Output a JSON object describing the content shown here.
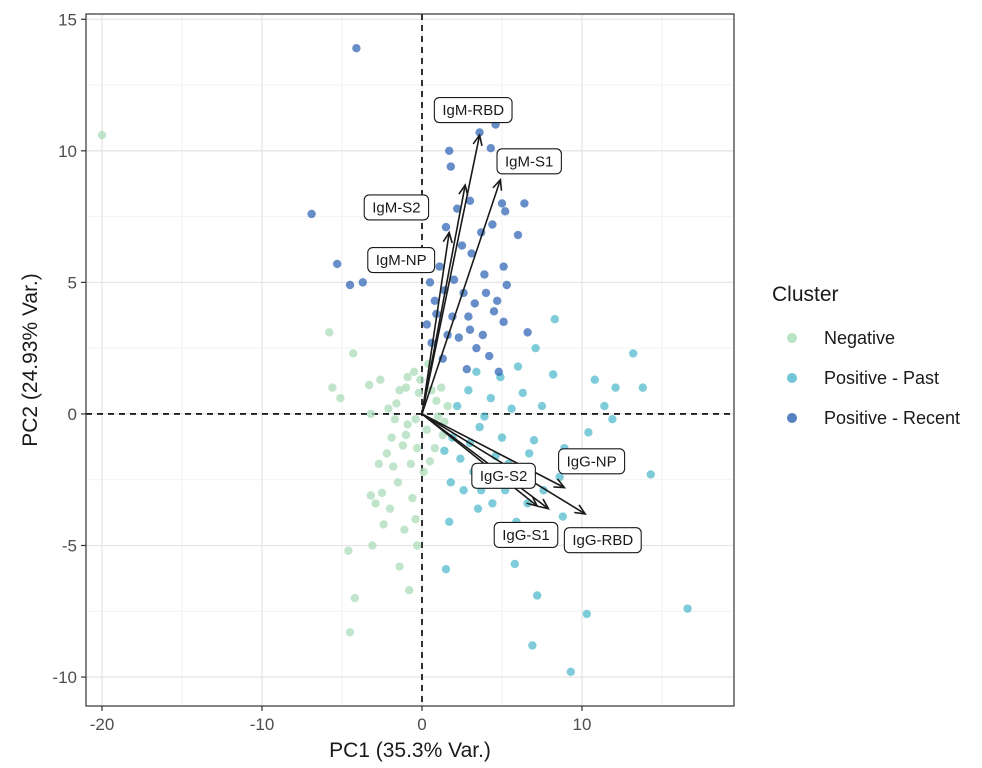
{
  "chart_data": {
    "type": "scatter",
    "title": "",
    "xlabel": "PC1 (35.3% Var.)",
    "ylabel": "PC2 (24.93% Var.)",
    "xlim": [
      -21,
      19.5
    ],
    "ylim": [
      -11.1,
      15.2
    ],
    "x_ticks": [
      -20,
      -10,
      0,
      10
    ],
    "y_ticks": [
      -10,
      -5,
      0,
      5,
      10,
      15
    ],
    "grid": true,
    "reference_lines": {
      "x": 0,
      "y": 0,
      "style": "dashed"
    },
    "legend": {
      "title": "Cluster",
      "placement": "right",
      "entries": [
        {
          "label": "Negative",
          "color": "#a8dbb7"
        },
        {
          "label": "Positive - Past",
          "color": "#4cb8cc"
        },
        {
          "label": "Positive - Recent",
          "color": "#2c62b4"
        }
      ]
    },
    "series": [
      {
        "name": "Negative",
        "color": "#a8dbb7",
        "points": [
          [
            -20,
            10.6
          ],
          [
            -5.8,
            3.1
          ],
          [
            -5.6,
            1.0
          ],
          [
            -5.1,
            0.6
          ],
          [
            -4.3,
            2.3
          ],
          [
            -3.3,
            1.1
          ],
          [
            -2.6,
            1.3
          ],
          [
            -3.2,
            0.0
          ],
          [
            -4.2,
            -7.0
          ],
          [
            -4.5,
            -8.3
          ],
          [
            -4.6,
            -5.2
          ],
          [
            -3.1,
            -5.0
          ],
          [
            -1.4,
            -5.8
          ],
          [
            -0.8,
            -6.7
          ],
          [
            -0.3,
            -5.0
          ],
          [
            -2.5,
            -3.0
          ],
          [
            -2.0,
            -3.6
          ],
          [
            -3.2,
            -3.1
          ],
          [
            -2.4,
            -4.2
          ],
          [
            -1.8,
            -2.0
          ],
          [
            -0.6,
            -3.2
          ],
          [
            -1.0,
            1.0
          ],
          [
            -0.5,
            1.6
          ],
          [
            0.4,
            1.9
          ],
          [
            1.2,
            1.0
          ],
          [
            -1.6,
            0.4
          ],
          [
            -0.9,
            -0.4
          ],
          [
            -0.3,
            -1.3
          ],
          [
            0.5,
            -1.8
          ],
          [
            1.3,
            -0.8
          ],
          [
            0.9,
            0.5
          ],
          [
            -1.2,
            -1.2
          ],
          [
            -0.2,
            0.8
          ],
          [
            0.3,
            -0.6
          ],
          [
            1.6,
            0.3
          ],
          [
            -1.9,
            -0.9
          ],
          [
            -0.7,
            -1.9
          ],
          [
            0.1,
            -2.2
          ],
          [
            -2.2,
            -1.5
          ],
          [
            -1.4,
            0.9
          ],
          [
            -0.1,
            1.3
          ],
          [
            0.8,
            -1.3
          ],
          [
            -0.4,
            -0.2
          ],
          [
            1.0,
            -0.1
          ],
          [
            -1.0,
            -0.8
          ],
          [
            -1.5,
            -2.6
          ],
          [
            -2.7,
            -1.9
          ],
          [
            -2.9,
            -3.4
          ],
          [
            -1.1,
            -4.4
          ],
          [
            -0.4,
            -4.0
          ],
          [
            -2.1,
            0.2
          ],
          [
            -0.9,
            1.4
          ],
          [
            0.6,
            0.9
          ],
          [
            1.4,
            -0.3
          ],
          [
            -1.7,
            -0.2
          ]
        ]
      },
      {
        "name": "Positive - Past",
        "color": "#4cb8cc",
        "points": [
          [
            16.6,
            -7.4
          ],
          [
            9.3,
            -9.8
          ],
          [
            6.9,
            -8.8
          ],
          [
            7.2,
            -6.9
          ],
          [
            10.3,
            -7.6
          ],
          [
            5.8,
            -5.7
          ],
          [
            1.5,
            -5.9
          ],
          [
            1.7,
            -4.1
          ],
          [
            3.5,
            -3.6
          ],
          [
            8.8,
            -3.9
          ],
          [
            14.3,
            -2.3
          ],
          [
            13.8,
            1.0
          ],
          [
            13.2,
            2.3
          ],
          [
            12.1,
            1.0
          ],
          [
            11.4,
            0.3
          ],
          [
            10.8,
            1.3
          ],
          [
            11.9,
            -0.2
          ],
          [
            10.4,
            -0.7
          ],
          [
            8.3,
            3.6
          ],
          [
            7.1,
            2.5
          ],
          [
            8.2,
            1.5
          ],
          [
            6.3,
            0.8
          ],
          [
            7.0,
            -1.0
          ],
          [
            4.9,
            1.4
          ],
          [
            5.6,
            0.2
          ],
          [
            4.3,
            0.6
          ],
          [
            3.6,
            -0.5
          ],
          [
            2.9,
            0.9
          ],
          [
            4.6,
            -1.6
          ],
          [
            5.4,
            -1.9
          ],
          [
            6.2,
            -2.5
          ],
          [
            3.2,
            -2.2
          ],
          [
            2.4,
            -1.7
          ],
          [
            1.9,
            -0.9
          ],
          [
            3.0,
            -1.1
          ],
          [
            4.1,
            -2.6
          ],
          [
            5.2,
            -2.9
          ],
          [
            6.6,
            -3.4
          ],
          [
            7.6,
            -2.9
          ],
          [
            8.6,
            -2.4
          ],
          [
            2.6,
            -2.9
          ],
          [
            1.4,
            -1.4
          ],
          [
            3.9,
            -0.1
          ],
          [
            5.0,
            -0.9
          ],
          [
            6.7,
            -1.5
          ],
          [
            7.5,
            0.3
          ],
          [
            8.9,
            -1.3
          ],
          [
            9.6,
            -2.1
          ],
          [
            2.2,
            0.3
          ],
          [
            3.4,
            1.6
          ],
          [
            4.4,
            -3.4
          ],
          [
            5.9,
            -4.1
          ],
          [
            3.7,
            -2.9
          ],
          [
            1.8,
            -2.6
          ],
          [
            6.0,
            1.8
          ]
        ]
      },
      {
        "name": "Positive - Recent",
        "color": "#2c62b4",
        "points": [
          [
            -4.1,
            13.9
          ],
          [
            -6.9,
            7.6
          ],
          [
            -5.3,
            5.7
          ],
          [
            -4.5,
            4.9
          ],
          [
            -3.7,
            5.0
          ],
          [
            1.5,
            7.1
          ],
          [
            2.2,
            7.8
          ],
          [
            3.0,
            8.1
          ],
          [
            3.6,
            10.7
          ],
          [
            4.3,
            10.1
          ],
          [
            4.6,
            11.0
          ],
          [
            1.8,
            9.4
          ],
          [
            1.7,
            10.0
          ],
          [
            5.0,
            8.0
          ],
          [
            4.4,
            7.2
          ],
          [
            5.2,
            7.7
          ],
          [
            6.4,
            8.0
          ],
          [
            6.0,
            6.8
          ],
          [
            5.1,
            5.6
          ],
          [
            5.3,
            4.9
          ],
          [
            3.1,
            6.1
          ],
          [
            3.9,
            5.3
          ],
          [
            2.6,
            4.6
          ],
          [
            1.1,
            5.6
          ],
          [
            0.8,
            4.3
          ],
          [
            1.9,
            3.7
          ],
          [
            3.0,
            3.2
          ],
          [
            4.5,
            3.9
          ],
          [
            5.1,
            3.5
          ],
          [
            6.6,
            3.1
          ],
          [
            0.3,
            3.4
          ],
          [
            0.6,
            2.7
          ],
          [
            1.3,
            2.1
          ],
          [
            2.3,
            2.9
          ],
          [
            3.4,
            2.5
          ],
          [
            4.2,
            2.2
          ],
          [
            4.8,
            1.6
          ],
          [
            2.8,
            1.7
          ],
          [
            1.6,
            3.0
          ],
          [
            0.9,
            3.8
          ],
          [
            2.0,
            5.1
          ],
          [
            3.3,
            4.2
          ],
          [
            4.0,
            4.6
          ],
          [
            2.5,
            6.4
          ],
          [
            3.7,
            6.9
          ],
          [
            1.4,
            4.7
          ],
          [
            2.9,
            3.7
          ],
          [
            4.7,
            4.3
          ],
          [
            0.5,
            5.0
          ],
          [
            3.8,
            3.0
          ]
        ]
      }
    ],
    "loadings": [
      {
        "label": "IgM-RBD",
        "x": 3.6,
        "y": 10.6
      },
      {
        "label": "IgM-S1",
        "x": 4.9,
        "y": 8.9
      },
      {
        "label": "IgM-S2",
        "x": 2.7,
        "y": 8.7
      },
      {
        "label": "IgM-NP",
        "x": 1.7,
        "y": 6.9
      },
      {
        "label": "IgG-S2",
        "x": 7.2,
        "y": -3.5
      },
      {
        "label": "IgG-NP",
        "x": 8.9,
        "y": -2.8
      },
      {
        "label": "IgG-S1",
        "x": 7.9,
        "y": -3.6
      },
      {
        "label": "IgG-RBD",
        "x": 10.2,
        "y": -3.8
      }
    ]
  }
}
